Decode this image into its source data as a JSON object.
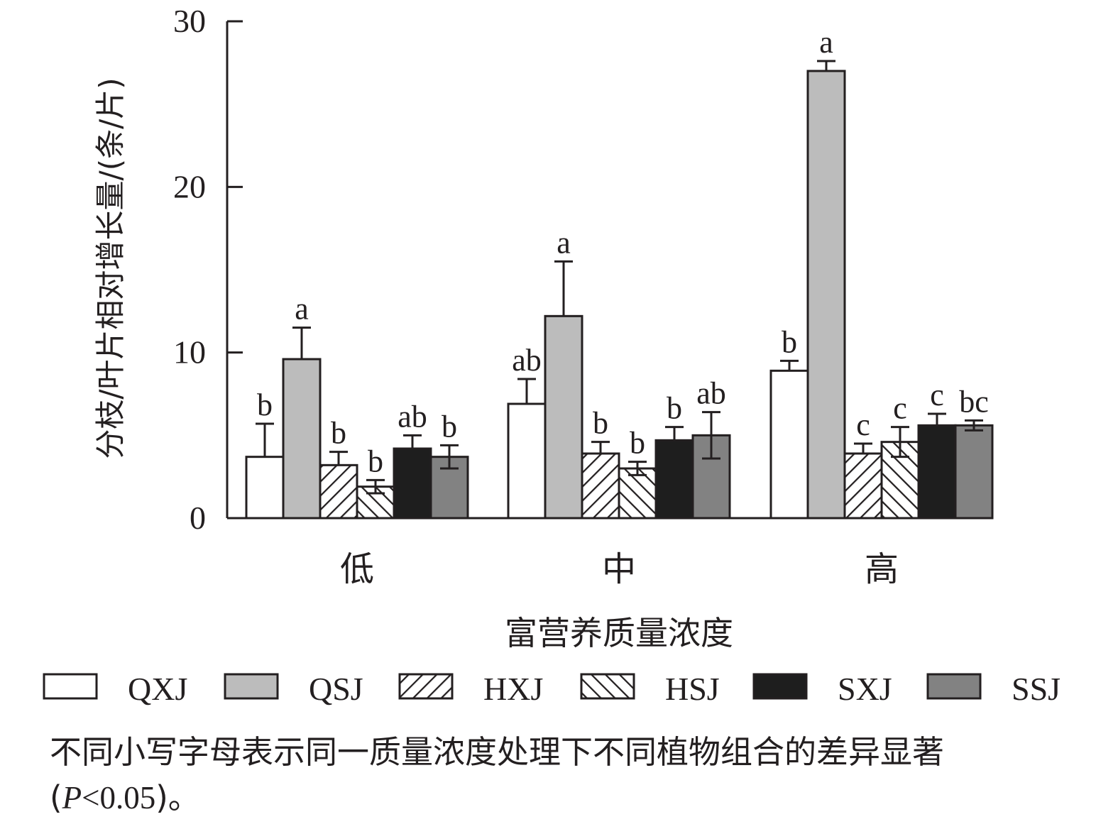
{
  "chart_data": {
    "type": "bar",
    "xlabel": "富营养质量浓度",
    "ylabel": "分枝/叶片相对增长量/(条/片)",
    "ylim": [
      0,
      30
    ],
    "yticks": [
      "0",
      "10",
      "20",
      "30"
    ],
    "categories": [
      "低",
      "中",
      "高"
    ],
    "grid": false,
    "legend_position": "bottom",
    "series": [
      {
        "name": "QXJ",
        "pattern": "empty",
        "color": "#ffffff",
        "values": [
          3.7,
          6.9,
          8.9
        ],
        "errors": [
          2.0,
          1.5,
          0.6
        ],
        "labels": [
          "b",
          "ab",
          "b"
        ]
      },
      {
        "name": "QSJ",
        "pattern": "solid",
        "color": "#bcbcbc",
        "values": [
          9.6,
          12.2,
          27.0
        ],
        "errors": [
          1.9,
          3.3,
          0.6
        ],
        "labels": [
          "a",
          "a",
          "a"
        ]
      },
      {
        "name": "HXJ",
        "pattern": "forward-hatch",
        "color": "#ffffff",
        "values": [
          3.2,
          3.9,
          3.9
        ],
        "errors": [
          0.8,
          0.7,
          0.6
        ],
        "labels": [
          "b",
          "b",
          "c"
        ]
      },
      {
        "name": "HSJ",
        "pattern": "back-hatch",
        "color": "#ffffff",
        "values": [
          1.9,
          3.0,
          4.6
        ],
        "errors": [
          0.4,
          0.4,
          0.9
        ],
        "labels": [
          "b",
          "b",
          "c"
        ]
      },
      {
        "name": "SXJ",
        "pattern": "solid",
        "color": "#1e1e1e",
        "values": [
          4.2,
          4.7,
          5.6
        ],
        "errors": [
          0.8,
          0.8,
          0.7
        ],
        "labels": [
          "ab",
          "b",
          "c"
        ]
      },
      {
        "name": "SSJ",
        "pattern": "solid",
        "color": "#828282",
        "values": [
          3.7,
          5.0,
          5.6
        ],
        "errors": [
          0.7,
          1.4,
          0.3
        ],
        "labels": [
          "b",
          "ab",
          "bc"
        ]
      }
    ]
  },
  "note": {
    "prefix": "不同小写字母表示同一质量浓度处理下不同植物组合的差异显著 (",
    "p_symbol": "P",
    "condition": "<0.05",
    "suffix": ")。"
  }
}
